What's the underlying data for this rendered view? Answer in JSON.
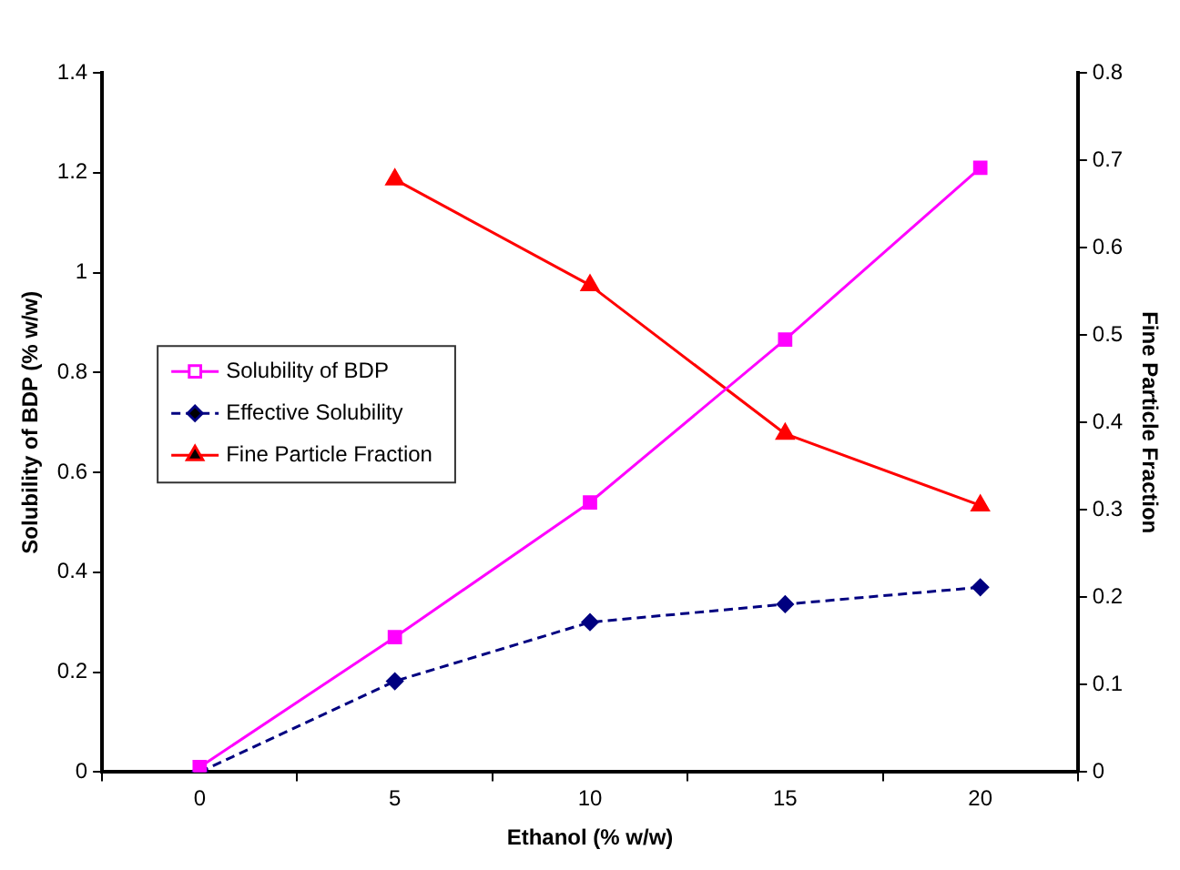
{
  "chart_data": {
    "type": "line",
    "xlabel": "Ethanol (% w/w)",
    "ylabel": "Solubility of BDP (% w/w)",
    "y2label": "Fine Particle Fraction",
    "categories": [
      "0",
      "5",
      "10",
      "15",
      "20"
    ],
    "series": [
      {
        "name": "Solubility of BDP",
        "color": "#ff00ff",
        "values": [
          0.01,
          0.27,
          0.54,
          0.866,
          1.21
        ],
        "marker": "square",
        "line_style": "solid"
      },
      {
        "name": "Effective Solubility",
        "color": "#000080",
        "values": [
          0,
          0.182,
          0.3,
          0.336,
          0.37
        ],
        "marker": "diamond",
        "line_style": "dashed"
      },
      {
        "name": "Fine Particle Fraction",
        "color": "#ff0000",
        "values": [
          null,
          0.678,
          0.557,
          0.387,
          0.305
        ],
        "marker": "triangle",
        "line_style": "solid",
        "axis": "y2"
      }
    ],
    "ylim": [
      0,
      1.4
    ],
    "yticks": [
      0,
      0.2,
      0.4,
      0.6,
      0.8,
      1,
      1.2,
      1.4
    ],
    "y2lim": [
      0,
      0.8
    ],
    "y2ticks": [
      0,
      0.1,
      0.2,
      0.3,
      0.4,
      0.5,
      0.6,
      0.7,
      0.8
    ],
    "grid": false,
    "legend": "left"
  }
}
